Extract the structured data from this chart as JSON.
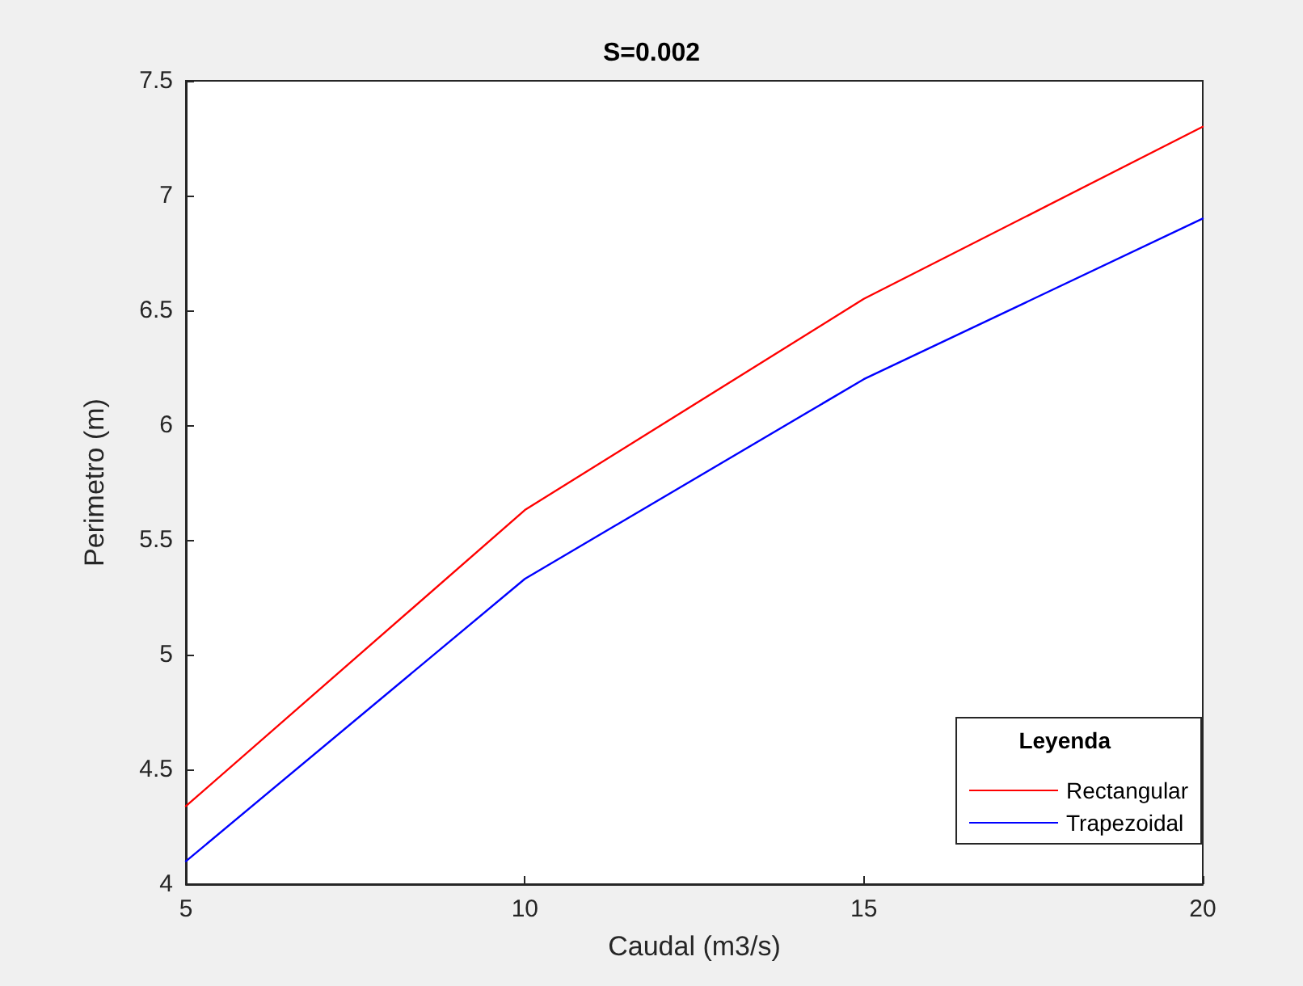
{
  "chart_data": {
    "type": "line",
    "title": "S=0.002",
    "xlabel": "Caudal (m3/s)",
    "ylabel": "Perimetro (m)",
    "legend_title": "Leyenda",
    "x": [
      5,
      10,
      15,
      20
    ],
    "series": [
      {
        "name": "Rectangular",
        "color": "#ff0000",
        "values": [
          4.34,
          5.63,
          6.55,
          7.3
        ]
      },
      {
        "name": "Trapezoidal",
        "color": "#0000ff",
        "values": [
          4.1,
          5.33,
          6.2,
          6.9
        ]
      }
    ],
    "xlim": [
      5,
      20
    ],
    "xticks": [
      5,
      10,
      15,
      20
    ],
    "ylim": [
      4,
      7.5
    ],
    "yticks": [
      4,
      4.5,
      5,
      5.5,
      6,
      6.5,
      7,
      7.5
    ],
    "grid": false,
    "legend": "bottom right"
  }
}
